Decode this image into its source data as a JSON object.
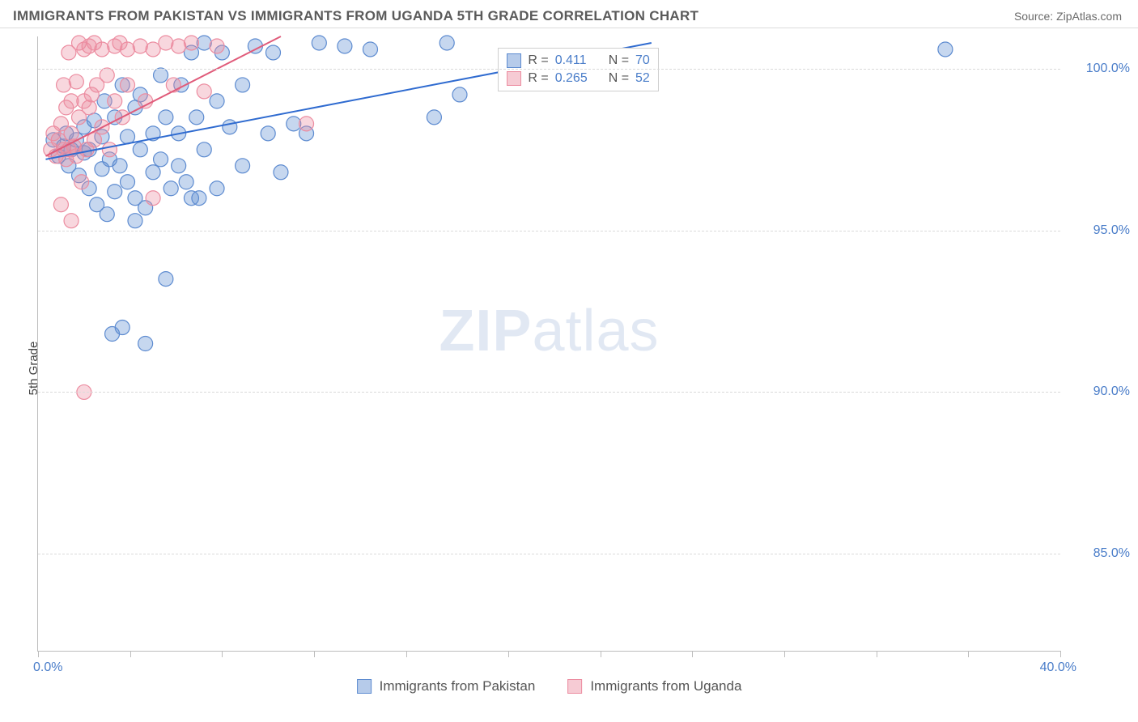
{
  "title": "IMMIGRANTS FROM PAKISTAN VS IMMIGRANTS FROM UGANDA 5TH GRADE CORRELATION CHART",
  "source": "Source: ZipAtlas.com",
  "y_axis_label": "5th Grade",
  "watermark_bold": "ZIP",
  "watermark_rest": "atlas",
  "chart": {
    "type": "scatter",
    "x_min": 0.0,
    "x_max": 40.0,
    "y_min": 82.0,
    "y_max": 101.0,
    "x_tick_positions_pct": [
      0,
      9,
      18,
      27,
      36,
      46,
      55,
      64,
      73,
      82,
      91,
      100
    ],
    "x_start_label": "0.0%",
    "x_end_label": "40.0%",
    "y_ticks": [
      {
        "v": 100.0,
        "label": "100.0%"
      },
      {
        "v": 95.0,
        "label": "95.0%"
      },
      {
        "v": 90.0,
        "label": "90.0%"
      },
      {
        "v": 85.0,
        "label": "85.0%"
      }
    ],
    "grid_color": "#dadada",
    "background_color": "#ffffff",
    "series": [
      {
        "name": "Immigrants from Pakistan",
        "legend_label": "Immigrants from Pakistan",
        "color": "#5d8bd0",
        "fill": "rgba(93,139,208,0.35)",
        "stroke_width": 1.2,
        "marker_radius": 9,
        "r_value": "0.411",
        "n_value": "70",
        "trend": {
          "x1": 0.3,
          "y1": 97.2,
          "x2": 24.0,
          "y2": 100.8,
          "color": "#2f6bd0",
          "width": 2
        },
        "points": [
          [
            0.6,
            97.8
          ],
          [
            0.8,
            97.3
          ],
          [
            1.0,
            97.6
          ],
          [
            1.1,
            98.0
          ],
          [
            1.2,
            97.0
          ],
          [
            1.3,
            97.5
          ],
          [
            1.5,
            97.8
          ],
          [
            1.6,
            96.7
          ],
          [
            1.8,
            98.2
          ],
          [
            1.8,
            97.4
          ],
          [
            2.0,
            97.5
          ],
          [
            2.0,
            96.3
          ],
          [
            2.2,
            98.4
          ],
          [
            2.3,
            95.8
          ],
          [
            2.5,
            97.9
          ],
          [
            2.5,
            96.9
          ],
          [
            2.6,
            99.0
          ],
          [
            2.7,
            95.5
          ],
          [
            2.8,
            97.2
          ],
          [
            2.9,
            91.8
          ],
          [
            3.0,
            96.2
          ],
          [
            3.0,
            98.5
          ],
          [
            3.2,
            97.0
          ],
          [
            3.3,
            99.5
          ],
          [
            3.5,
            96.5
          ],
          [
            3.5,
            97.9
          ],
          [
            3.8,
            98.8
          ],
          [
            3.8,
            96.0
          ],
          [
            4.0,
            97.5
          ],
          [
            4.0,
            99.2
          ],
          [
            4.2,
            95.7
          ],
          [
            4.2,
            91.5
          ],
          [
            4.5,
            98.0
          ],
          [
            4.5,
            96.8
          ],
          [
            4.8,
            97.2
          ],
          [
            4.8,
            99.8
          ],
          [
            5.0,
            98.5
          ],
          [
            5.0,
            93.5
          ],
          [
            5.2,
            96.3
          ],
          [
            5.5,
            98.0
          ],
          [
            5.5,
            97.0
          ],
          [
            5.6,
            99.5
          ],
          [
            5.8,
            96.5
          ],
          [
            6.0,
            100.5
          ],
          [
            6.0,
            96.0
          ],
          [
            6.2,
            98.5
          ],
          [
            6.5,
            97.5
          ],
          [
            6.5,
            100.8
          ],
          [
            7.0,
            99.0
          ],
          [
            7.0,
            96.3
          ],
          [
            7.2,
            100.5
          ],
          [
            7.5,
            98.2
          ],
          [
            8.0,
            99.5
          ],
          [
            8.0,
            97.0
          ],
          [
            8.5,
            100.7
          ],
          [
            9.0,
            98.0
          ],
          [
            9.2,
            100.5
          ],
          [
            9.5,
            96.8
          ],
          [
            10.0,
            98.3
          ],
          [
            10.5,
            98.0
          ],
          [
            11.0,
            100.8
          ],
          [
            12.0,
            100.7
          ],
          [
            13.0,
            100.6
          ],
          [
            15.5,
            98.5
          ],
          [
            16.5,
            99.2
          ],
          [
            16.0,
            100.8
          ],
          [
            3.8,
            95.3
          ],
          [
            3.3,
            92.0
          ],
          [
            6.3,
            96.0
          ],
          [
            35.5,
            100.6
          ]
        ]
      },
      {
        "name": "Immigrants from Uganda",
        "legend_label": "Immigrants from Uganda",
        "color": "#ec8ca0",
        "fill": "rgba(236,140,160,0.35)",
        "stroke_width": 1.2,
        "marker_radius": 9,
        "r_value": "0.265",
        "n_value": "52",
        "trend": {
          "x1": 0.3,
          "y1": 97.3,
          "x2": 9.5,
          "y2": 101.0,
          "color": "#e05b7a",
          "width": 2
        },
        "points": [
          [
            0.5,
            97.5
          ],
          [
            0.6,
            98.0
          ],
          [
            0.7,
            97.3
          ],
          [
            0.8,
            97.8
          ],
          [
            0.9,
            98.3
          ],
          [
            1.0,
            97.5
          ],
          [
            1.0,
            99.5
          ],
          [
            1.1,
            97.2
          ],
          [
            1.1,
            98.8
          ],
          [
            1.2,
            97.5
          ],
          [
            1.2,
            100.5
          ],
          [
            1.3,
            98.0
          ],
          [
            1.3,
            99.0
          ],
          [
            1.4,
            97.6
          ],
          [
            1.5,
            99.6
          ],
          [
            1.5,
            97.3
          ],
          [
            1.6,
            100.8
          ],
          [
            1.6,
            98.5
          ],
          [
            1.7,
            96.5
          ],
          [
            1.8,
            99.0
          ],
          [
            1.8,
            100.6
          ],
          [
            1.9,
            97.5
          ],
          [
            2.0,
            98.8
          ],
          [
            2.0,
            100.7
          ],
          [
            2.1,
            99.2
          ],
          [
            2.2,
            97.8
          ],
          [
            2.2,
            100.8
          ],
          [
            2.3,
            99.5
          ],
          [
            2.5,
            100.6
          ],
          [
            2.5,
            98.2
          ],
          [
            2.7,
            99.8
          ],
          [
            2.8,
            97.5
          ],
          [
            3.0,
            100.7
          ],
          [
            3.0,
            99.0
          ],
          [
            3.2,
            100.8
          ],
          [
            3.3,
            98.5
          ],
          [
            3.5,
            99.5
          ],
          [
            3.5,
            100.6
          ],
          [
            4.0,
            100.7
          ],
          [
            4.2,
            99.0
          ],
          [
            4.5,
            100.6
          ],
          [
            5.0,
            100.8
          ],
          [
            5.3,
            99.5
          ],
          [
            5.5,
            100.7
          ],
          [
            6.0,
            100.8
          ],
          [
            6.5,
            99.3
          ],
          [
            7.0,
            100.7
          ],
          [
            4.5,
            96.0
          ],
          [
            1.3,
            95.3
          ],
          [
            1.8,
            90.0
          ],
          [
            0.9,
            95.8
          ],
          [
            10.5,
            98.3
          ]
        ]
      }
    ]
  },
  "legend_top": {
    "r_label": "R =",
    "n_label": "N ="
  }
}
